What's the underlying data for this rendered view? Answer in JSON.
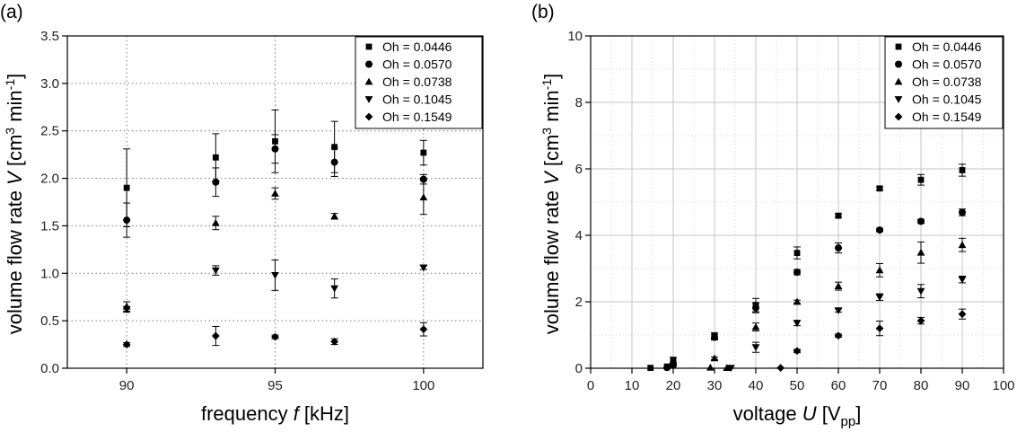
{
  "chart_data": [
    {
      "panel_label": "(a)",
      "type": "scatter",
      "xlabel_prefix": "frequency ",
      "xlabel_var": "f",
      "xlabel_suffix": " [kHz]",
      "ylabel_prefix": "volume flow rate ",
      "ylabel_var": "V",
      "ylabel_unit": " [cm",
      "ylabel_exp1": "3",
      "ylabel_mid": " min",
      "ylabel_exp2": "-1",
      "ylabel_end": "]",
      "xlim": [
        88,
        102
      ],
      "ylim": [
        0,
        3.5
      ],
      "xticks": [
        90,
        95,
        100
      ],
      "yticks": [
        0.0,
        0.5,
        1.0,
        1.5,
        2.0,
        2.5,
        3.0,
        3.5
      ],
      "ytick_labels": [
        "0.0",
        "0.5",
        "1.0",
        "1.5",
        "2.0",
        "2.5",
        "3.0",
        "3.5"
      ],
      "grid": "dotted",
      "legend_position": "top-right",
      "series": [
        {
          "name": "Oh = 0.0446",
          "marker": "square",
          "x": [
            90,
            93,
            95,
            97,
            100
          ],
          "y": [
            1.9,
            2.22,
            2.39,
            2.33,
            2.27
          ],
          "err": [
            0.41,
            0.25,
            0.33,
            0.27,
            0.13
          ]
        },
        {
          "name": "Oh = 0.0570",
          "marker": "circle",
          "x": [
            90,
            93,
            95,
            97,
            100
          ],
          "y": [
            1.56,
            1.96,
            2.31,
            2.17,
            1.99
          ],
          "err": [
            0.18,
            0.15,
            0.15,
            0.15,
            0.05
          ]
        },
        {
          "name": "Oh = 0.0738",
          "marker": "triangle-up",
          "x": [
            90,
            93,
            95,
            97,
            100
          ],
          "y": [
            0.65,
            1.53,
            1.84,
            1.6,
            1.8
          ],
          "err": [
            0.05,
            0.07,
            0.06,
            0.03,
            0.18
          ]
        },
        {
          "name": "Oh = 0.1045",
          "marker": "triangle-down",
          "x": [
            90,
            93,
            95,
            97,
            100
          ],
          "y": [
            0.62,
            1.03,
            0.98,
            0.84,
            1.06
          ],
          "err": [
            0.03,
            0.05,
            0.16,
            0.1,
            0.02
          ]
        },
        {
          "name": "Oh = 0.1549",
          "marker": "diamond",
          "x": [
            90,
            93,
            95,
            97,
            100
          ],
          "y": [
            0.25,
            0.34,
            0.33,
            0.28,
            0.41
          ],
          "err": [
            0.02,
            0.1,
            0.02,
            0.03,
            0.07
          ]
        }
      ]
    },
    {
      "panel_label": "(b)",
      "type": "scatter",
      "xlabel_prefix": "voltage ",
      "xlabel_var": "U",
      "xlabel_suffix": " [V",
      "xlabel_sub": "pp",
      "xlabel_end": "]",
      "ylabel_prefix": "volume flow rate ",
      "ylabel_var": "V",
      "ylabel_unit": " [cm",
      "ylabel_exp1": "3",
      "ylabel_mid": " min",
      "ylabel_exp2": "-1",
      "ylabel_end": "]",
      "xlim": [
        0,
        100
      ],
      "ylim": [
        0,
        10
      ],
      "xticks": [
        0,
        10,
        20,
        30,
        40,
        50,
        60,
        70,
        80,
        90,
        100
      ],
      "yticks": [
        0,
        2,
        4,
        6,
        8,
        10
      ],
      "ytick_labels": [
        "0",
        "2",
        "4",
        "6",
        "8",
        "10"
      ],
      "grid": "solid-major, dotted-minor",
      "legend_position": "top-right",
      "series": [
        {
          "name": "Oh = 0.0446",
          "marker": "square",
          "x": [
            14.5,
            18.5,
            20,
            30,
            40,
            50,
            60,
            70,
            80,
            90
          ],
          "y": [
            0.01,
            0.05,
            0.25,
            0.97,
            1.9,
            3.47,
            4.59,
            5.41,
            5.67,
            5.96
          ],
          "err": [
            0,
            0,
            0.08,
            0.1,
            0.2,
            0.18,
            0.05,
            0.05,
            0.16,
            0.18
          ]
        },
        {
          "name": "Oh = 0.0570",
          "marker": "circle",
          "x": [
            18.5,
            20,
            30,
            40,
            50,
            60,
            70,
            80,
            90
          ],
          "y": [
            0.02,
            0.1,
            0.93,
            1.82,
            2.89,
            3.62,
            4.16,
            4.42,
            4.69
          ],
          "err": [
            0,
            0.05,
            0.08,
            0.15,
            0.08,
            0.15,
            0.05,
            0.06,
            0.1
          ]
        },
        {
          "name": "Oh = 0.0738",
          "marker": "triangle-up",
          "x": [
            29,
            30,
            33,
            40,
            50,
            60,
            70,
            80,
            90
          ],
          "y": [
            0.02,
            0.3,
            0.01,
            1.24,
            2.0,
            2.47,
            2.95,
            3.48,
            3.71
          ],
          "err": [
            0,
            0.04,
            0,
            0.12,
            0.05,
            0.12,
            0.2,
            0.32,
            0.2
          ]
        },
        {
          "name": "Oh = 0.1045",
          "marker": "triangle-down",
          "x": [
            34,
            40,
            50,
            60,
            70,
            80,
            90
          ],
          "y": [
            0.01,
            0.63,
            1.36,
            1.74,
            2.14,
            2.32,
            2.67
          ],
          "err": [
            0,
            0.15,
            0.08,
            0.05,
            0.1,
            0.2,
            0.1
          ]
        },
        {
          "name": "Oh = 0.1549",
          "marker": "diamond",
          "x": [
            46,
            50,
            60,
            70,
            80,
            90
          ],
          "y": [
            0.01,
            0.52,
            0.98,
            1.2,
            1.43,
            1.63
          ],
          "err": [
            0,
            0.05,
            0.05,
            0.22,
            0.1,
            0.15
          ]
        }
      ]
    }
  ]
}
